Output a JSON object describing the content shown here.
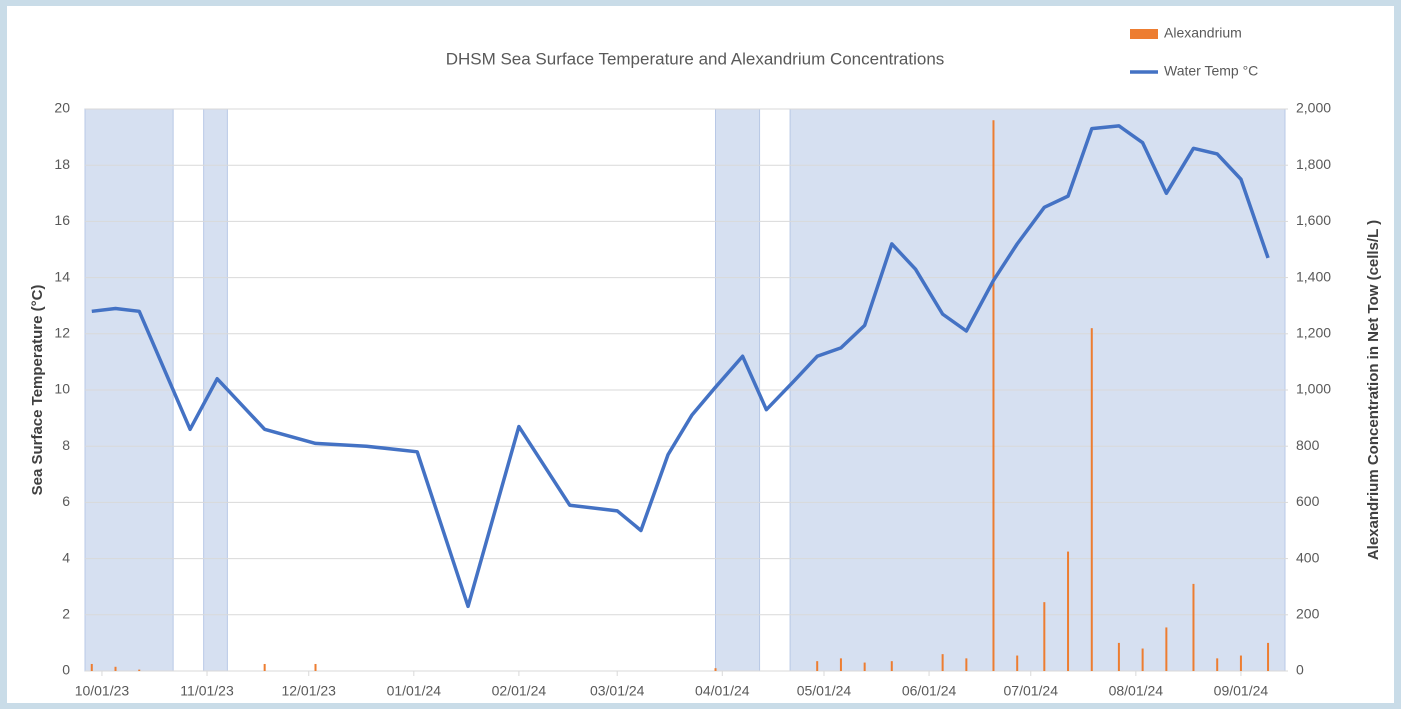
{
  "chart_data": {
    "type": "combo",
    "title": "DHSM Sea Surface Temperature and Alexandrium Concentrations",
    "y_label": "Sea Surface Temperature (°C)",
    "y2_label": "Alexandrium Concentration in Net Tow (cells/L )",
    "x": [
      "09/28/23",
      "10/05/23",
      "10/12/23",
      "10/27/23",
      "11/04/23",
      "11/18/23",
      "12/03/23",
      "12/18/23",
      "01/02/24",
      "01/17/24",
      "02/01/24",
      "02/16/24",
      "03/01/24",
      "03/08/24",
      "03/16/24",
      "03/23/24",
      "03/30/24",
      "04/07/24",
      "04/14/24",
      "04/22/24",
      "04/29/24",
      "05/06/24",
      "05/13/24",
      "05/21/24",
      "05/28/24",
      "06/05/24",
      "06/12/24",
      "06/20/24",
      "06/27/24",
      "07/05/24",
      "07/12/24",
      "07/19/24",
      "07/27/24",
      "08/03/24",
      "08/10/24",
      "08/18/24",
      "08/25/24",
      "09/01/24",
      "09/09/24"
    ],
    "series": [
      {
        "name": "Alexandrium",
        "type": "bar",
        "axis": "y2",
        "color": "#ed7d31",
        "values": [
          25,
          15,
          5,
          null,
          null,
          25,
          25,
          null,
          null,
          null,
          null,
          null,
          null,
          null,
          null,
          null,
          10,
          null,
          null,
          null,
          35,
          45,
          30,
          35,
          null,
          60,
          45,
          1960,
          55,
          245,
          425,
          1220,
          100,
          80,
          155,
          310,
          45,
          55,
          100
        ]
      },
      {
        "name": "Water Temp °C",
        "type": "line",
        "axis": "y",
        "color": "#4472c4",
        "values": [
          12.8,
          12.9,
          12.8,
          8.6,
          10.4,
          8.6,
          8.1,
          8.0,
          7.8,
          2.3,
          8.7,
          5.9,
          5.7,
          5.0,
          7.7,
          9.1,
          10.1,
          11.2,
          9.3,
          10.3,
          11.2,
          11.5,
          12.3,
          15.2,
          14.3,
          12.7,
          12.1,
          13.9,
          15.2,
          16.5,
          16.9,
          19.3,
          19.4,
          18.8,
          17.0,
          18.6,
          18.4,
          17.5,
          14.7
        ]
      }
    ],
    "shaded_spans": [
      [
        "09/26/23",
        "10/22/23"
      ],
      [
        "10/31/23",
        "11/07/23"
      ],
      [
        "03/30/24",
        "04/12/24"
      ],
      [
        "04/21/24",
        "09/14/24"
      ]
    ],
    "span_color": "#d6e0f1",
    "xlim": [
      "09/26/23",
      "09/14/24"
    ],
    "xticks": [
      "10/01/23",
      "11/01/23",
      "12/01/23",
      "01/01/24",
      "02/01/24",
      "03/01/24",
      "04/01/24",
      "05/01/24",
      "06/01/24",
      "07/01/24",
      "08/01/24",
      "09/01/24"
    ],
    "ylim": [
      0,
      20
    ],
    "yticks": [
      0,
      2,
      4,
      6,
      8,
      10,
      12,
      14,
      16,
      18,
      20
    ],
    "y2lim": [
      0,
      2000
    ],
    "y2ticks": [
      0,
      200,
      400,
      600,
      800,
      {
        "value": 1000,
        "label": "1,000"
      },
      {
        "value": 1200,
        "label": "1,200"
      },
      {
        "value": 1400,
        "label": "1,400"
      },
      {
        "value": 1600,
        "label": "1,600"
      },
      {
        "value": 1800,
        "label": "1,800"
      },
      {
        "value": 2000,
        "label": "2,000"
      }
    ],
    "grid": true,
    "legend": "top-right"
  }
}
